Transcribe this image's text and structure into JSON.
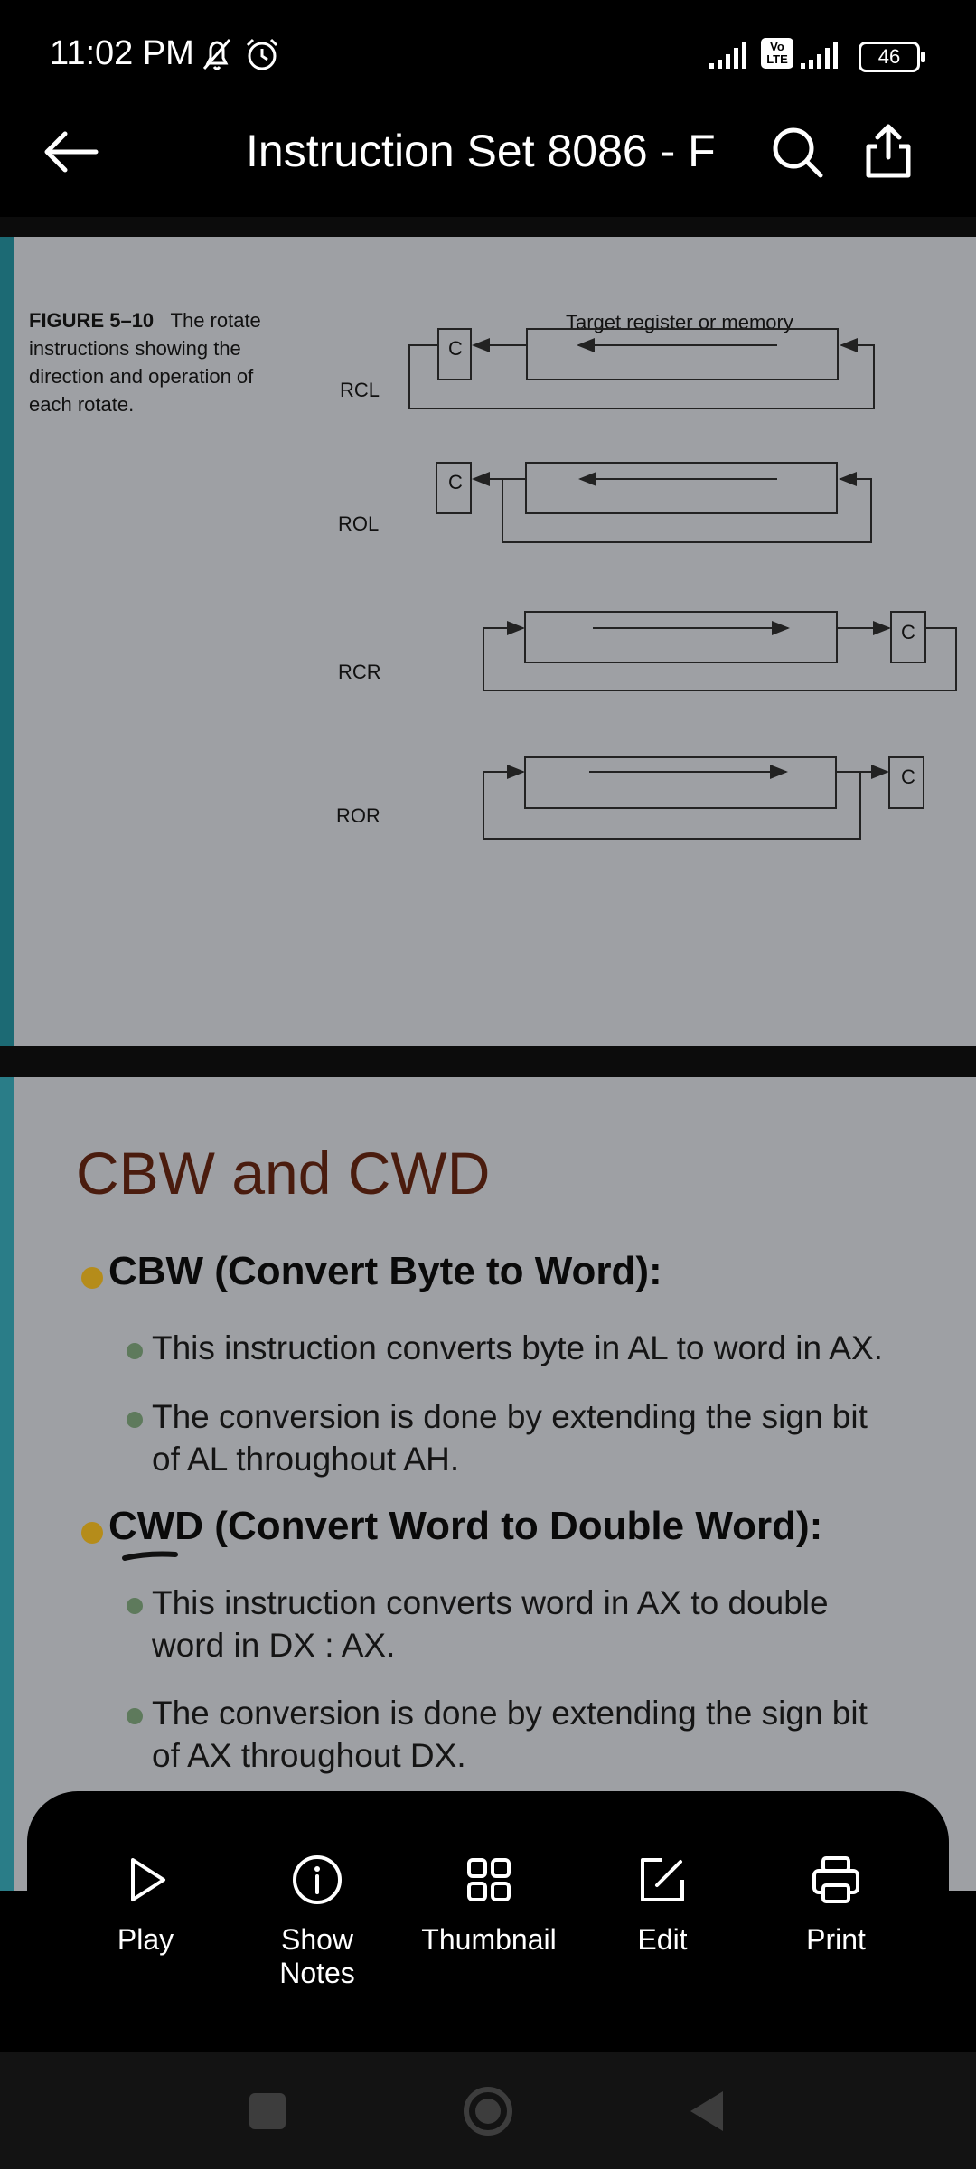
{
  "status_bar": {
    "time": "11:02 PM",
    "battery": "46",
    "volte": "Vo\nLTE"
  },
  "app_bar": {
    "title": "Instruction Set 8086 - F"
  },
  "slide1": {
    "caption_bold": "FIGURE 5–10",
    "caption_text": "The rotate instructions showing the direction and operation of each rotate.",
    "header": "Target register or memory",
    "rows": [
      "RCL",
      "ROL",
      "RCR",
      "ROR"
    ],
    "carry": "C"
  },
  "slide2": {
    "title": "CBW and CWD",
    "bullets": [
      {
        "text": "CBW (Convert Byte to Word):",
        "subs": [
          "This instruction converts byte in AL to word in AX.",
          "The conversion is done by extending the sign bit",
          "of AL  throughout AH."
        ]
      },
      {
        "text": "CWD (Convert Word to Double Word):",
        "subs": [
          "This instruction converts word in AX to double",
          "word in  DX : AX.",
          "The conversion is done by extending the sign bit",
          "of AX  throughout DX."
        ]
      }
    ]
  },
  "toolbar": {
    "play": "Play",
    "show_notes_1": "Show",
    "show_notes_2": "Notes",
    "thumbnail": "Thumbnail",
    "edit": "Edit",
    "print": "Print"
  },
  "colors": {
    "title_brown": "#4a1c0e",
    "bullet_gold": "#b58c1a",
    "bullet_green": "#5e7a5c",
    "slide_bg": "#9ea0a4"
  }
}
